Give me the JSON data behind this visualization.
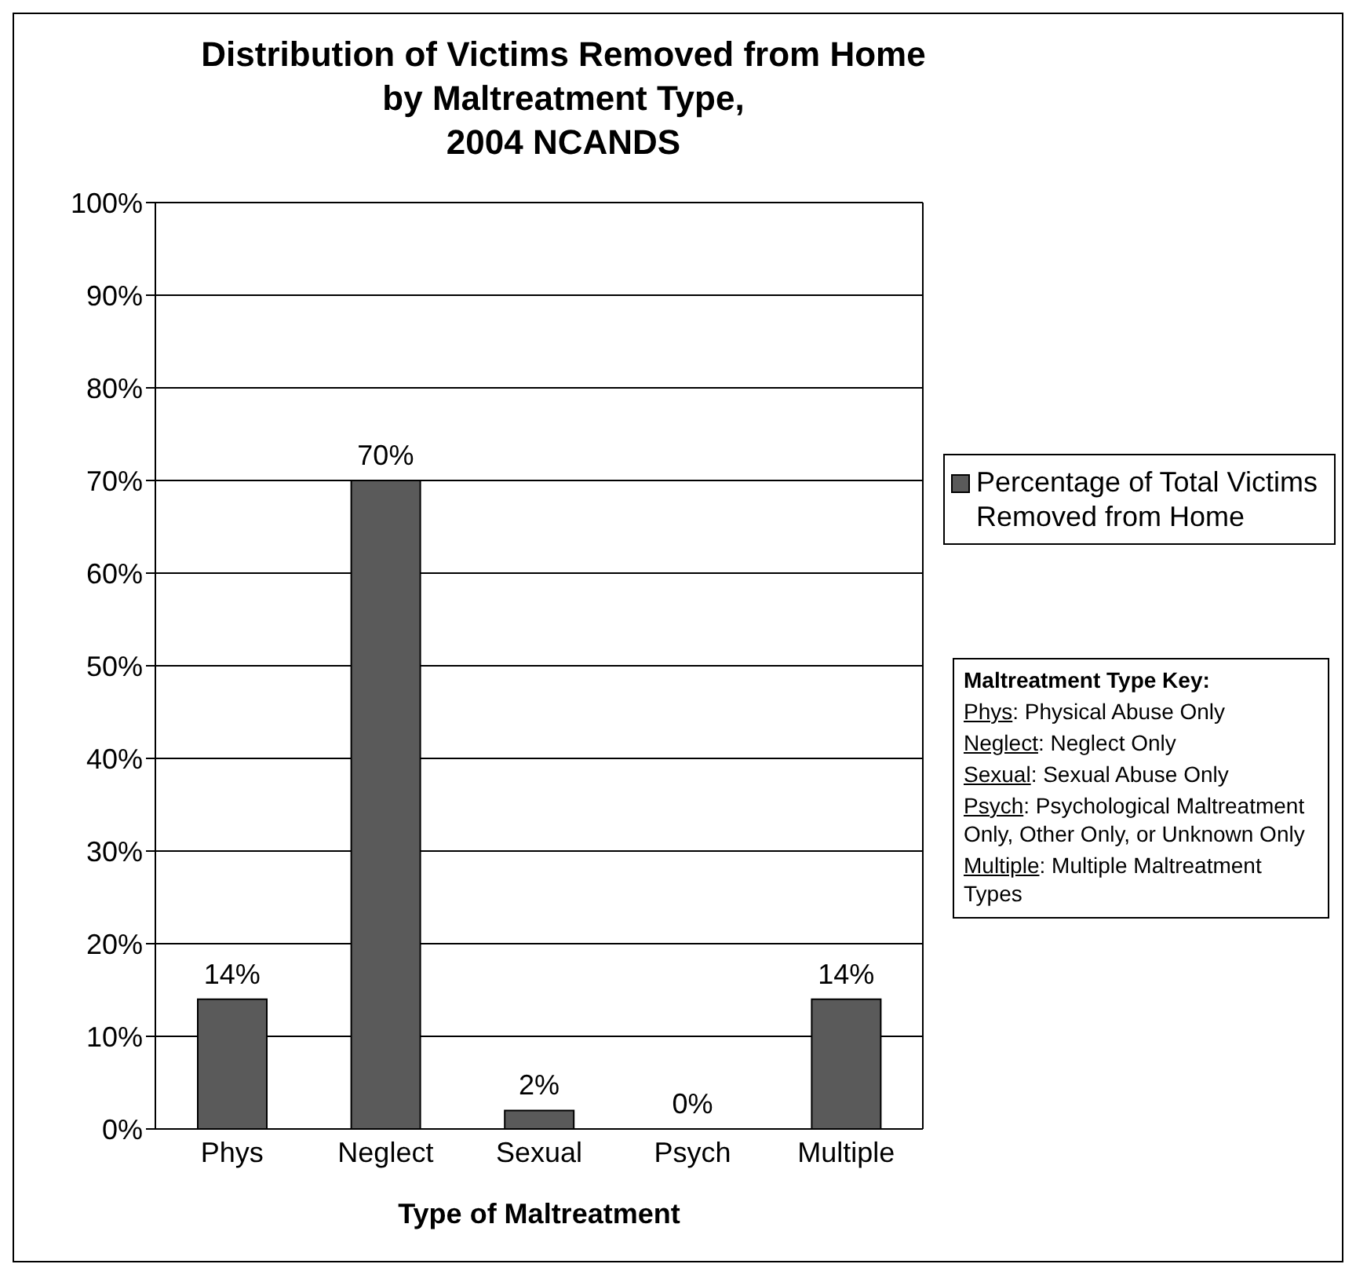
{
  "chart_data": {
    "type": "bar",
    "title": "Distribution of Victims Removed from Home\nby Maltreatment Type,\n2004 NCANDS",
    "xlabel": "Type of Maltreatment",
    "categories": [
      "Phys",
      "Neglect",
      "Sexual",
      "Psych",
      "Multiple"
    ],
    "series": [
      {
        "name": "Percentage of Total Victims Removed from Home",
        "color": "#5a5a5a",
        "values": [
          14,
          70,
          2,
          0,
          14
        ],
        "value_labels": [
          "14%",
          "70%",
          "2%",
          "0%",
          "14%"
        ]
      }
    ],
    "ylim": [
      0,
      100
    ],
    "yticks": [
      {
        "value": 0,
        "label": "0%"
      },
      {
        "value": 10,
        "label": "10%"
      },
      {
        "value": 20,
        "label": "20%"
      },
      {
        "value": 30,
        "label": "30%"
      },
      {
        "value": 40,
        "label": "40%"
      },
      {
        "value": 50,
        "label": "50%"
      },
      {
        "value": 60,
        "label": "60%"
      },
      {
        "value": 70,
        "label": "70%"
      },
      {
        "value": 80,
        "label": "80%"
      },
      {
        "value": 90,
        "label": "90%"
      },
      {
        "value": 100,
        "label": "100%"
      }
    ],
    "grid": "y",
    "legend": "right",
    "annotations": [
      "Maltreatment Type Key:",
      "Phys: Physical Abuse Only",
      "Neglect: Neglect Only",
      "Sexual: Sexual Abuse Only",
      "Psych: Psychological Maltreatment Only, Other Only, or Unknown Only",
      "Multiple: Multiple Maltreatment Types"
    ]
  }
}
